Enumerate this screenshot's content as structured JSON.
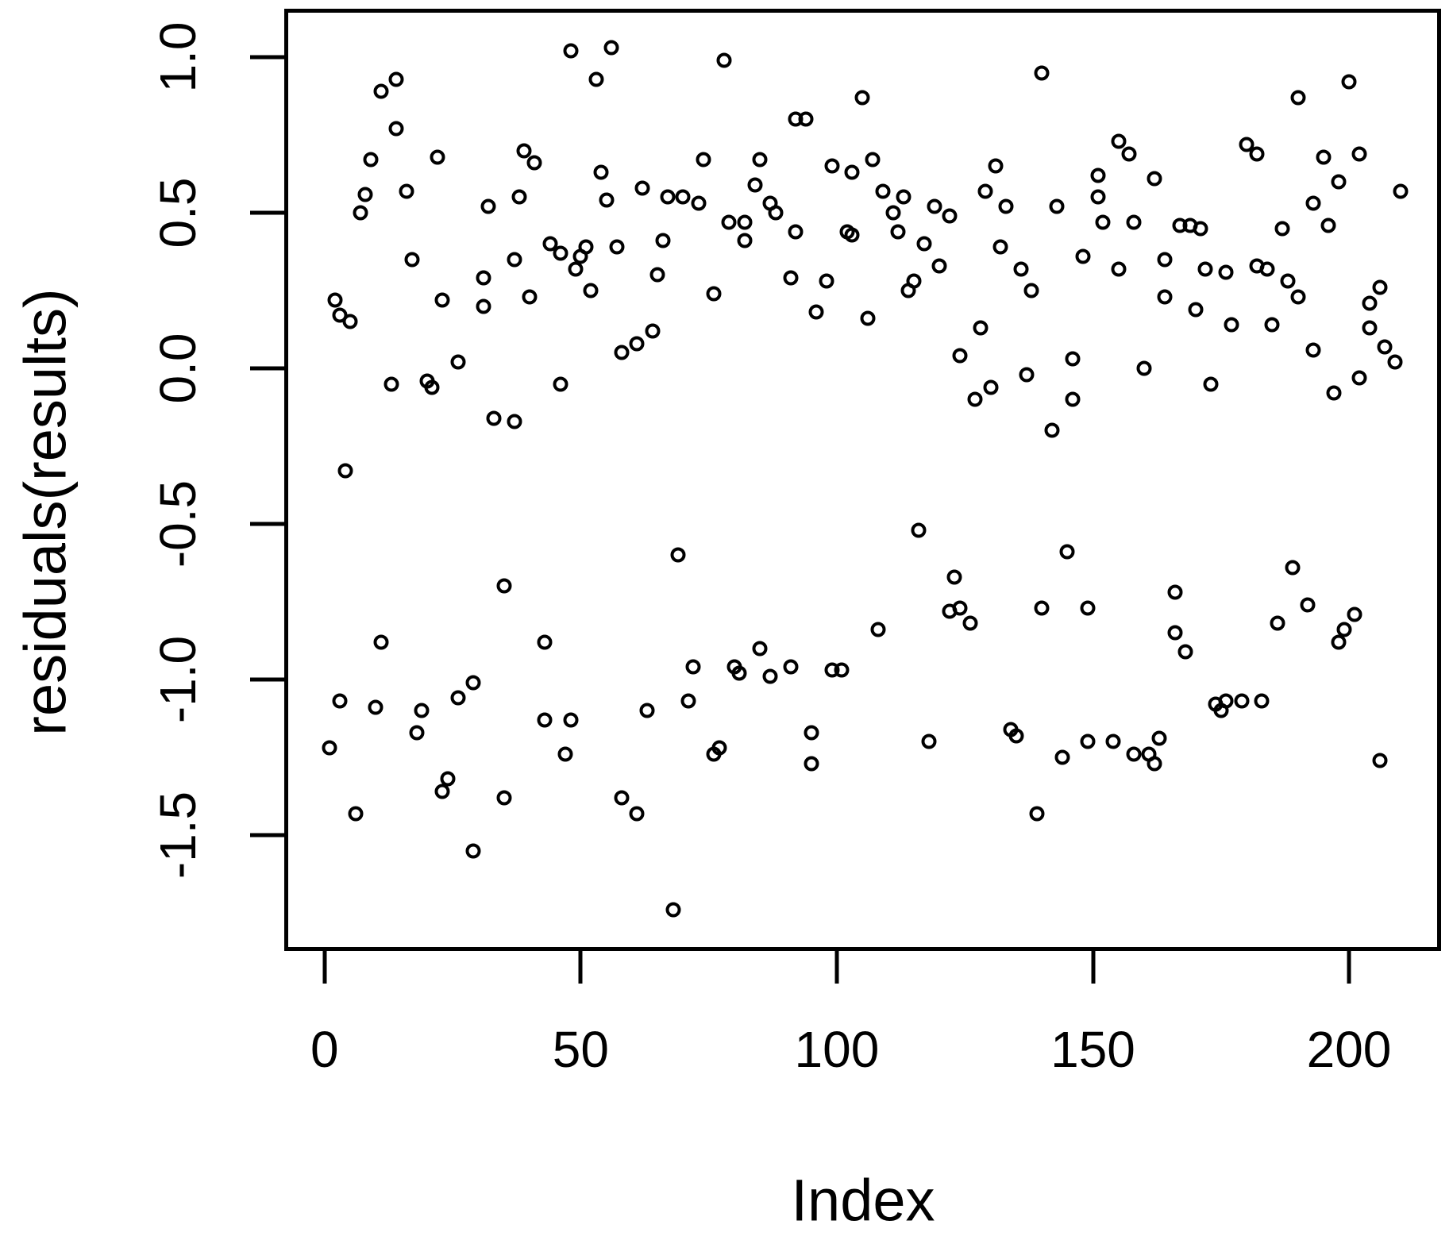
{
  "figure": {
    "background_color": "#ffffff",
    "frame_color": "#000000",
    "point_color": "#000000",
    "text_color": "#000000"
  },
  "chart_data": {
    "type": "scatter",
    "title": "",
    "xlabel": "Index",
    "ylabel": "residuals(results)",
    "marker": "open-circle",
    "grid": false,
    "legend": null,
    "xlim": [
      -7.1,
      217.2
    ],
    "ylim": [
      -1.86,
      1.143
    ],
    "x_ticks": [
      0,
      50,
      100,
      150,
      200
    ],
    "x_tick_labels": [
      "0",
      "50",
      "100",
      "150",
      "200"
    ],
    "y_ticks": [
      1.0,
      0.5,
      0.0,
      -0.5,
      -1.0,
      -1.5
    ],
    "y_tick_labels": [
      "1.0",
      "0.5",
      "0.0",
      "-0.5",
      "-1.0",
      "-1.5"
    ],
    "points": [
      [
        1,
        -1.22
      ],
      [
        2,
        0.22
      ],
      [
        3,
        0.17
      ],
      [
        3,
        -1.07
      ],
      [
        4,
        -0.33
      ],
      [
        5,
        0.15
      ],
      [
        6,
        -1.43
      ],
      [
        7,
        0.5
      ],
      [
        8,
        0.56
      ],
      [
        9,
        0.67
      ],
      [
        10,
        -1.09
      ],
      [
        11,
        0.89
      ],
      [
        11,
        -0.88
      ],
      [
        13,
        -0.05
      ],
      [
        14,
        0.93
      ],
      [
        14,
        0.77
      ],
      [
        16,
        0.57
      ],
      [
        17,
        0.35
      ],
      [
        18,
        -1.17
      ],
      [
        19,
        -1.1
      ],
      [
        20,
        -0.04
      ],
      [
        21,
        -0.06
      ],
      [
        22,
        0.68
      ],
      [
        23,
        0.22
      ],
      [
        23,
        -1.36
      ],
      [
        24,
        -1.32
      ],
      [
        26,
        0.02
      ],
      [
        26,
        -1.06
      ],
      [
        29,
        -1.01
      ],
      [
        29,
        -1.55
      ],
      [
        31,
        0.29
      ],
      [
        31,
        0.2
      ],
      [
        32,
        0.52
      ],
      [
        33,
        -0.16
      ],
      [
        35,
        -0.7
      ],
      [
        35,
        -1.38
      ],
      [
        37,
        0.35
      ],
      [
        37,
        -0.17
      ],
      [
        38,
        0.55
      ],
      [
        39,
        0.7
      ],
      [
        40,
        0.23
      ],
      [
        41,
        0.66
      ],
      [
        43,
        -0.88
      ],
      [
        43,
        -1.13
      ],
      [
        44,
        0.4
      ],
      [
        46,
        0.37
      ],
      [
        46,
        -0.05
      ],
      [
        47,
        -1.24
      ],
      [
        48,
        1.02
      ],
      [
        48,
        -1.13
      ],
      [
        49,
        0.32
      ],
      [
        50,
        0.36
      ],
      [
        51,
        0.39
      ],
      [
        52,
        0.25
      ],
      [
        53,
        0.93
      ],
      [
        54,
        0.63
      ],
      [
        55,
        0.54
      ],
      [
        56,
        1.03
      ],
      [
        57,
        0.39
      ],
      [
        58,
        0.05
      ],
      [
        58,
        -1.38
      ],
      [
        61,
        0.08
      ],
      [
        61,
        -1.43
      ],
      [
        62,
        0.58
      ],
      [
        63,
        -1.1
      ],
      [
        64,
        0.12
      ],
      [
        65,
        0.3
      ],
      [
        66,
        0.41
      ],
      [
        67,
        0.55
      ],
      [
        68,
        -1.74
      ],
      [
        69,
        -0.6
      ],
      [
        70,
        0.55
      ],
      [
        71,
        -1.07
      ],
      [
        72,
        -0.96
      ],
      [
        73,
        0.53
      ],
      [
        74,
        0.67
      ],
      [
        76,
        0.24
      ],
      [
        76,
        -1.24
      ],
      [
        77,
        -1.22
      ],
      [
        78,
        0.99
      ],
      [
        79,
        0.47
      ],
      [
        80,
        -0.96
      ],
      [
        81,
        -0.98
      ],
      [
        82,
        0.47
      ],
      [
        82,
        0.41
      ],
      [
        84,
        0.59
      ],
      [
        85,
        0.67
      ],
      [
        85,
        -0.9
      ],
      [
        87,
        0.53
      ],
      [
        87,
        -0.99
      ],
      [
        88,
        0.5
      ],
      [
        91,
        0.29
      ],
      [
        91,
        -0.96
      ],
      [
        92,
        0.8
      ],
      [
        92,
        0.44
      ],
      [
        94,
        0.8
      ],
      [
        95,
        -1.17
      ],
      [
        95,
        -1.27
      ],
      [
        96,
        0.18
      ],
      [
        98,
        0.28
      ],
      [
        99,
        0.65
      ],
      [
        99,
        -0.97
      ],
      [
        101,
        -0.97
      ],
      [
        102,
        0.44
      ],
      [
        103,
        0.63
      ],
      [
        103,
        0.43
      ],
      [
        105,
        0.87
      ],
      [
        106,
        0.16
      ],
      [
        107,
        0.67
      ],
      [
        108,
        -0.84
      ],
      [
        109,
        0.57
      ],
      [
        111,
        0.5
      ],
      [
        112,
        0.44
      ],
      [
        113,
        0.55
      ],
      [
        114,
        0.25
      ],
      [
        115,
        0.28
      ],
      [
        116,
        -0.52
      ],
      [
        117,
        0.4
      ],
      [
        118,
        -1.2
      ],
      [
        119,
        0.52
      ],
      [
        120,
        0.33
      ],
      [
        122,
        0.49
      ],
      [
        122,
        -0.78
      ],
      [
        123,
        -0.67
      ],
      [
        124,
        0.04
      ],
      [
        124,
        -0.77
      ],
      [
        126,
        -0.82
      ],
      [
        127,
        -0.1
      ],
      [
        128,
        0.13
      ],
      [
        129,
        0.57
      ],
      [
        130,
        -0.06
      ],
      [
        131,
        0.65
      ],
      [
        132,
        0.39
      ],
      [
        133,
        0.52
      ],
      [
        134,
        -1.16
      ],
      [
        135,
        -1.18
      ],
      [
        136,
        0.32
      ],
      [
        137,
        -0.02
      ],
      [
        138,
        0.25
      ],
      [
        139,
        -1.43
      ],
      [
        140,
        0.95
      ],
      [
        140,
        -0.77
      ],
      [
        142,
        -0.2
      ],
      [
        143,
        0.52
      ],
      [
        144,
        -1.25
      ],
      [
        145,
        -0.59
      ],
      [
        146,
        0.03
      ],
      [
        146,
        -0.1
      ],
      [
        148,
        0.36
      ],
      [
        149,
        -0.77
      ],
      [
        149,
        -1.2
      ],
      [
        151,
        0.62
      ],
      [
        151,
        0.55
      ],
      [
        152,
        0.47
      ],
      [
        154,
        -1.2
      ],
      [
        155,
        0.73
      ],
      [
        155,
        0.32
      ],
      [
        157,
        0.69
      ],
      [
        158,
        0.47
      ],
      [
        158,
        -1.24
      ],
      [
        160,
        0.0
      ],
      [
        161,
        -1.24
      ],
      [
        162,
        0.61
      ],
      [
        162,
        -1.27
      ],
      [
        163,
        -1.19
      ],
      [
        164,
        0.35
      ],
      [
        164,
        0.23
      ],
      [
        166,
        -0.72
      ],
      [
        166,
        -0.85
      ],
      [
        167,
        0.46
      ],
      [
        168,
        -0.91
      ],
      [
        169,
        0.46
      ],
      [
        170,
        0.19
      ],
      [
        171,
        0.45
      ],
      [
        172,
        0.32
      ],
      [
        173,
        -0.05
      ],
      [
        174,
        -1.08
      ],
      [
        175,
        -1.1
      ],
      [
        176,
        0.31
      ],
      [
        176,
        -1.07
      ],
      [
        177,
        0.14
      ],
      [
        179,
        -1.07
      ],
      [
        180,
        0.72
      ],
      [
        182,
        0.69
      ],
      [
        182,
        0.33
      ],
      [
        183,
        -1.07
      ],
      [
        184,
        0.32
      ],
      [
        185,
        0.14
      ],
      [
        186,
        -0.82
      ],
      [
        187,
        0.45
      ],
      [
        188,
        0.28
      ],
      [
        189,
        -0.64
      ],
      [
        190,
        0.87
      ],
      [
        190,
        0.23
      ],
      [
        192,
        -0.76
      ],
      [
        193,
        0.53
      ],
      [
        193,
        0.06
      ],
      [
        195,
        0.68
      ],
      [
        196,
        0.46
      ],
      [
        197,
        -0.08
      ],
      [
        198,
        0.6
      ],
      [
        198,
        -0.88
      ],
      [
        199,
        -0.84
      ],
      [
        200,
        0.92
      ],
      [
        201,
        -0.79
      ],
      [
        202,
        0.69
      ],
      [
        202,
        -0.03
      ],
      [
        204,
        0.21
      ],
      [
        204,
        0.13
      ],
      [
        206,
        0.26
      ],
      [
        206,
        -1.26
      ],
      [
        207,
        0.07
      ],
      [
        209,
        0.02
      ],
      [
        210,
        0.57
      ]
    ]
  }
}
